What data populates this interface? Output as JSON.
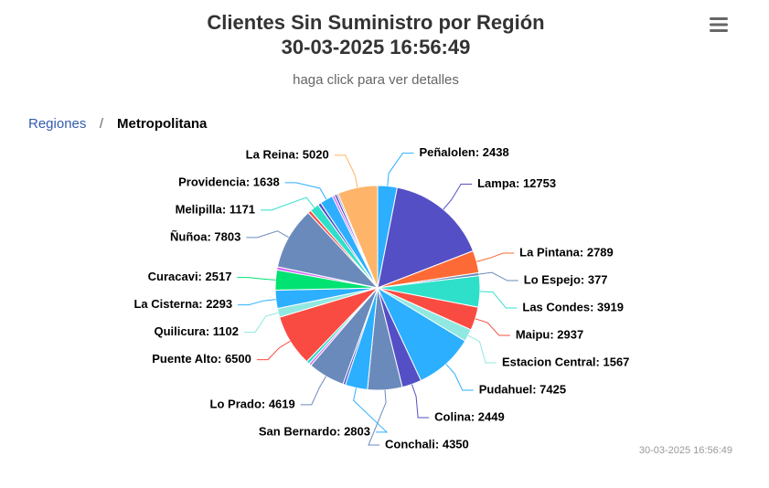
{
  "chart_data": {
    "type": "pie",
    "title": [
      "Clientes Sin Suministro por Región",
      "30-03-2025 16:56:49"
    ],
    "subtitle": "haga click para ver detalles",
    "breadcrumbs": {
      "items": [
        "Regiones",
        "Metropolitana"
      ],
      "separator": "/"
    },
    "credits": "30-03-2025 16:56:49",
    "values": [
      2438,
      12753,
      2789,
      377,
      3919,
      2937,
      1567,
      7425,
      2449,
      4350,
      2803,
      300,
      4619,
      300,
      400,
      6500,
      1102,
      2293,
      2517,
      400,
      7803,
      400,
      1171,
      400,
      1638,
      300,
      300,
      200,
      5020
    ],
    "value_labels": [
      "Peñalolen: 2438",
      "Lampa: 12753",
      "La Pintana: 2789",
      "Lo Espejo: 377",
      "Las Condes: 3919",
      "Maipu: 2937",
      "Estacion Central: 1567",
      "Pudahuel: 7425",
      "Colina: 2449",
      "Conchali: 4350",
      "San Bernardo: 2803",
      null,
      "Lo Prado: 4619",
      null,
      null,
      "Puente Alto: 6500",
      "Quilicura: 1102",
      "La Cisterna: 2293",
      "Curacavi: 2517",
      null,
      "Ñuñoa: 7803",
      null,
      "Melipilla: 1171",
      null,
      "Providencia: 1638",
      null,
      null,
      null,
      "La Reina: 5020"
    ],
    "colors": [
      "#2caffe",
      "#544fc5",
      "#fe6a35",
      "#6b8abc",
      "#2ee0ca",
      "#fa4b42",
      "#91e8e1",
      "#2caffe",
      "#544fc5",
      "#6b8abc",
      "#2caffe",
      "#544fc5",
      "#6b8abc",
      "#d568fb",
      "#2ee0ca",
      "#fa4b42",
      "#91e8e1",
      "#2caffe",
      "#00e272",
      "#d568fb",
      "#6b8abc",
      "#fa4b42",
      "#2ee0ca",
      "#544fc5",
      "#2caffe",
      "#d568fb",
      "#544fc5",
      "#6b8abc",
      "#feb56a"
    ]
  }
}
